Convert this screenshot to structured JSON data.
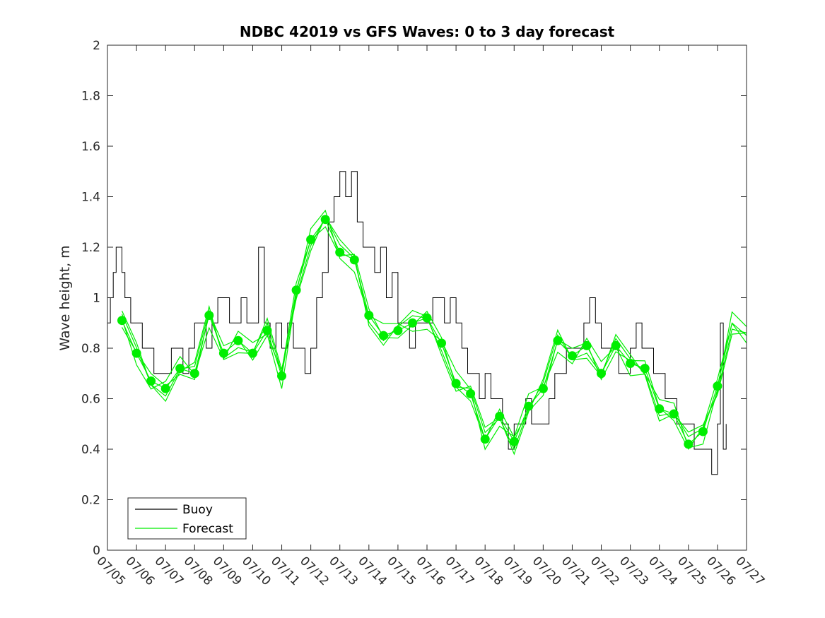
{
  "chart_data": {
    "type": "line",
    "title": "NDBC 42019 vs GFS Waves: 0 to 3 day forecast",
    "xlabel": "",
    "ylabel": "Wave height, m",
    "x_tick_labels": [
      "07/05",
      "07/06",
      "07/07",
      "07/08",
      "07/09",
      "07/10",
      "07/11",
      "07/12",
      "07/13",
      "07/14",
      "07/15",
      "07/16",
      "07/17",
      "07/18",
      "07/19",
      "07/20",
      "07/21",
      "07/22",
      "07/23",
      "07/24",
      "07/25",
      "07/26",
      "07/27"
    ],
    "xlim_days": [
      0,
      22
    ],
    "ylim": [
      0,
      2
    ],
    "y_ticks": [
      0,
      0.2,
      0.4,
      0.6,
      0.8,
      1,
      1.2,
      1.4,
      1.6,
      1.8,
      2
    ],
    "y_tick_labels": [
      "0",
      "0.2",
      "0.4",
      "0.6",
      "0.8",
      "1",
      "1.2",
      "1.4",
      "1.6",
      "1.8",
      "2"
    ],
    "grid": false,
    "legend_position": "bottom-left",
    "colors": {
      "buoy": "#000000",
      "forecast": "#00ee00"
    },
    "legend": [
      {
        "label": "Buoy",
        "color": "#000000"
      },
      {
        "label": "Forecast",
        "color": "#00ee00"
      }
    ],
    "series": [
      {
        "name": "Buoy",
        "x": [
          0,
          0.1,
          0.2,
          0.3,
          0.4,
          0.5,
          0.6,
          0.8,
          1,
          1.2,
          1.4,
          1.6,
          1.8,
          2,
          2.2,
          2.4,
          2.6,
          2.8,
          3,
          3.2,
          3.4,
          3.6,
          3.8,
          4,
          4.2,
          4.3,
          4.4,
          4.6,
          4.8,
          5,
          5.2,
          5.4,
          5.6,
          5.8,
          6,
          6.2,
          6.4,
          6.6,
          6.8,
          7,
          7.2,
          7.4,
          7.6,
          7.8,
          8,
          8.2,
          8.4,
          8.6,
          8.8,
          9,
          9.2,
          9.4,
          9.6,
          9.8,
          10,
          10.2,
          10.4,
          10.6,
          10.8,
          11,
          11.2,
          11.4,
          11.6,
          11.8,
          12,
          12.2,
          12.4,
          12.6,
          12.8,
          13,
          13.2,
          13.4,
          13.6,
          13.8,
          14,
          14.2,
          14.4,
          14.6,
          14.8,
          15,
          15.2,
          15.4,
          15.6,
          15.8,
          16,
          16.2,
          16.4,
          16.6,
          16.8,
          17,
          17.2,
          17.4,
          17.6,
          17.8,
          18,
          18.2,
          18.4,
          18.6,
          18.8,
          19,
          19.2,
          19.4,
          19.6,
          19.8,
          20,
          20.2,
          20.4,
          20.6,
          20.8,
          21,
          21.1,
          21.2,
          21.3
        ],
        "values": [
          0.9,
          1.0,
          1.1,
          1.2,
          1.2,
          1.1,
          1.0,
          0.9,
          0.9,
          0.8,
          0.8,
          0.7,
          0.7,
          0.7,
          0.8,
          0.8,
          0.7,
          0.8,
          0.9,
          0.9,
          0.8,
          0.9,
          1.0,
          1.0,
          0.9,
          0.9,
          0.9,
          1.0,
          0.9,
          0.9,
          1.2,
          0.9,
          0.8,
          0.9,
          0.8,
          0.9,
          0.8,
          0.8,
          0.7,
          0.8,
          1.0,
          1.1,
          1.3,
          1.4,
          1.5,
          1.4,
          1.5,
          1.3,
          1.2,
          1.2,
          1.1,
          1.2,
          1.0,
          1.1,
          0.9,
          0.9,
          0.8,
          0.9,
          0.9,
          0.9,
          1.0,
          1.0,
          0.9,
          1.0,
          0.9,
          0.8,
          0.7,
          0.7,
          0.6,
          0.7,
          0.6,
          0.6,
          0.5,
          0.4,
          0.5,
          0.5,
          0.6,
          0.5,
          0.5,
          0.5,
          0.6,
          0.7,
          0.7,
          0.8,
          0.8,
          0.8,
          0.9,
          1.0,
          0.9,
          0.8,
          0.8,
          0.8,
          0.7,
          0.7,
          0.8,
          0.9,
          0.8,
          0.8,
          0.7,
          0.7,
          0.6,
          0.6,
          0.5,
          0.5,
          0.5,
          0.4,
          0.4,
          0.4,
          0.3,
          0.5,
          0.9,
          0.4,
          0.5
        ],
        "style": "step"
      },
      {
        "name": "Forecast",
        "x": [
          0.5,
          1,
          1.5,
          2,
          2.5,
          3,
          3.5,
          4,
          4.5,
          5,
          5.5,
          6,
          6.5,
          7,
          7.5,
          8,
          8.5,
          9,
          9.5,
          10,
          10.5,
          11,
          11.5,
          12,
          12.5,
          13,
          13.5,
          14,
          14.5,
          15,
          15.5,
          16,
          16.5,
          17,
          17.5,
          18,
          18.5,
          19,
          19.5,
          20,
          20.5,
          21,
          21.5,
          22
        ],
        "values": [
          0.91,
          0.78,
          0.67,
          0.64,
          0.72,
          0.7,
          0.93,
          0.78,
          0.83,
          0.78,
          0.87,
          0.69,
          1.03,
          1.23,
          1.31,
          1.18,
          1.15,
          0.93,
          0.85,
          0.87,
          0.9,
          0.92,
          0.82,
          0.66,
          0.62,
          0.44,
          0.53,
          0.43,
          0.57,
          0.64,
          0.83,
          0.77,
          0.81,
          0.7,
          0.81,
          0.74,
          0.72,
          0.56,
          0.54,
          0.42,
          0.47,
          0.65,
          0.9,
          0.85
        ],
        "markers": [
          0.91,
          0.78,
          0.67,
          0.64,
          0.72,
          0.7,
          0.93,
          0.78,
          0.83,
          0.78,
          0.87,
          0.69,
          1.03,
          1.23,
          1.31,
          1.18,
          1.15,
          0.93,
          0.85,
          0.87,
          0.9,
          0.92,
          0.82,
          0.66,
          0.62,
          0.44,
          0.53,
          0.43,
          0.57,
          0.64,
          0.83,
          0.77,
          0.81,
          0.7,
          0.81,
          0.74,
          0.72,
          0.56,
          0.54,
          0.42,
          0.47,
          0.65
        ]
      }
    ]
  }
}
